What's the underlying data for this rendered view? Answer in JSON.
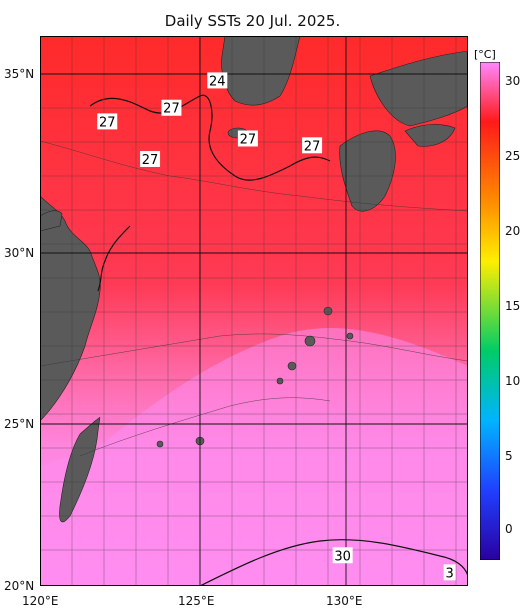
{
  "title": "Daily SSTs 20 Jul. 2025.",
  "axes": {
    "y_ticks": [
      "35°N",
      "30°N",
      "25°N",
      "20°N"
    ],
    "x_ticks": [
      "120°E",
      "125°E",
      "130°E"
    ]
  },
  "colorbar": {
    "unit": "[°C]",
    "ticks": [
      "30",
      "25",
      "20",
      "15",
      "10",
      "5",
      "0"
    ],
    "colors": {
      "top": "#ff88ff",
      "warm": "#ff2020",
      "orange": "#ff8c00",
      "yellow": "#ffee00",
      "green": "#00cc66",
      "blue": "#2040ff",
      "bottom": "#2a00a0"
    }
  },
  "contour_labels": [
    {
      "text": "27",
      "lon": 122.2,
      "lat": 33.6
    },
    {
      "text": "27",
      "lon": 124.3,
      "lat": 34.0
    },
    {
      "text": "24",
      "lon": 125.8,
      "lat": 34.8
    },
    {
      "text": "27",
      "lon": 123.6,
      "lat": 32.5
    },
    {
      "text": "27",
      "lon": 126.8,
      "lat": 33.1
    },
    {
      "text": "27",
      "lon": 128.9,
      "lat": 32.9
    },
    {
      "text": "30",
      "lon": 129.9,
      "lat": 20.9
    },
    {
      "text": "3",
      "lon": 133.4,
      "lat": 20.4
    }
  ],
  "colors": {
    "land": "#5a5a5a",
    "sea_warm": "#ff3b3b",
    "sea_hot": "#ff80e0",
    "grid": "#333333"
  }
}
